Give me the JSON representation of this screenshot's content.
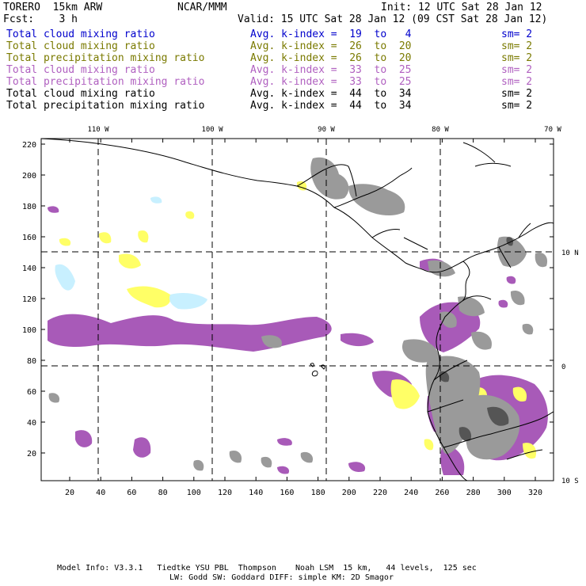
{
  "header": {
    "left1": "TORERO  15km ARW",
    "center1": "NCAR/MMM",
    "right1": "Init: 12 UTC Sat 28 Jan 12",
    "left2": "Fcst:    3 h",
    "right2": "Valid: 15 UTC Sat 28 Jan 12 (09 CST Sat 28 Jan 12)"
  },
  "legend": [
    {
      "field": "Total cloud mixing ratio",
      "kindex": "Avg. k-index =  19  to   4",
      "sm": "sm= 2",
      "color": "#0000cc"
    },
    {
      "field": "Total cloud mixing ratio",
      "kindex": "Avg. k-index =  26  to  20",
      "sm": "sm= 2",
      "color": "#7a7a00"
    },
    {
      "field": "Total precipitation mixing ratio",
      "kindex": "Avg. k-index =  26  to  20",
      "sm": "sm= 2",
      "color": "#7a7a00"
    },
    {
      "field": "Total cloud mixing ratio",
      "kindex": "Avg. k-index =  33  to  25",
      "sm": "sm= 2",
      "color": "#b060c0"
    },
    {
      "field": "Total precipitation mixing ratio",
      "kindex": "Avg. k-index =  33  to  25",
      "sm": "sm= 2",
      "color": "#b060c0"
    },
    {
      "field": "Total cloud mixing ratio",
      "kindex": "Avg. k-index =  44  to  34",
      "sm": "sm= 2",
      "color": "#000000"
    },
    {
      "field": "Total precipitation mixing ratio",
      "kindex": "Avg. k-index =  44  to  34",
      "sm": "sm= 2",
      "color": "#000000"
    }
  ],
  "map": {
    "lon_labels": [
      "110 W",
      "100 W",
      "90 W",
      "80 W",
      "70 W"
    ],
    "lat_labels": [
      "10 N",
      "0",
      "10 S"
    ],
    "y_ticks": [
      "220",
      "200",
      "180",
      "160",
      "140",
      "120",
      "100",
      "80",
      "60",
      "40",
      "20"
    ],
    "x_ticks": [
      "20",
      "40",
      "60",
      "80",
      "100",
      "120",
      "140",
      "160",
      "180",
      "200",
      "220",
      "240",
      "260",
      "280",
      "300",
      "320"
    ],
    "colors": {
      "purple": "#a85ab8",
      "yellow": "#ffff66",
      "cyan": "#c8f0ff",
      "gray": "#9a9a9a",
      "dark": "#555555"
    }
  },
  "footer": {
    "line1": "Model Info: V3.3.1   Tiedtke YSU PBL  Thompson    Noah LSM  15 km,   44 levels,  125 sec",
    "line2": "LW: Godd SW: Goddard DIFF: simple KM: 2D Smagor"
  }
}
